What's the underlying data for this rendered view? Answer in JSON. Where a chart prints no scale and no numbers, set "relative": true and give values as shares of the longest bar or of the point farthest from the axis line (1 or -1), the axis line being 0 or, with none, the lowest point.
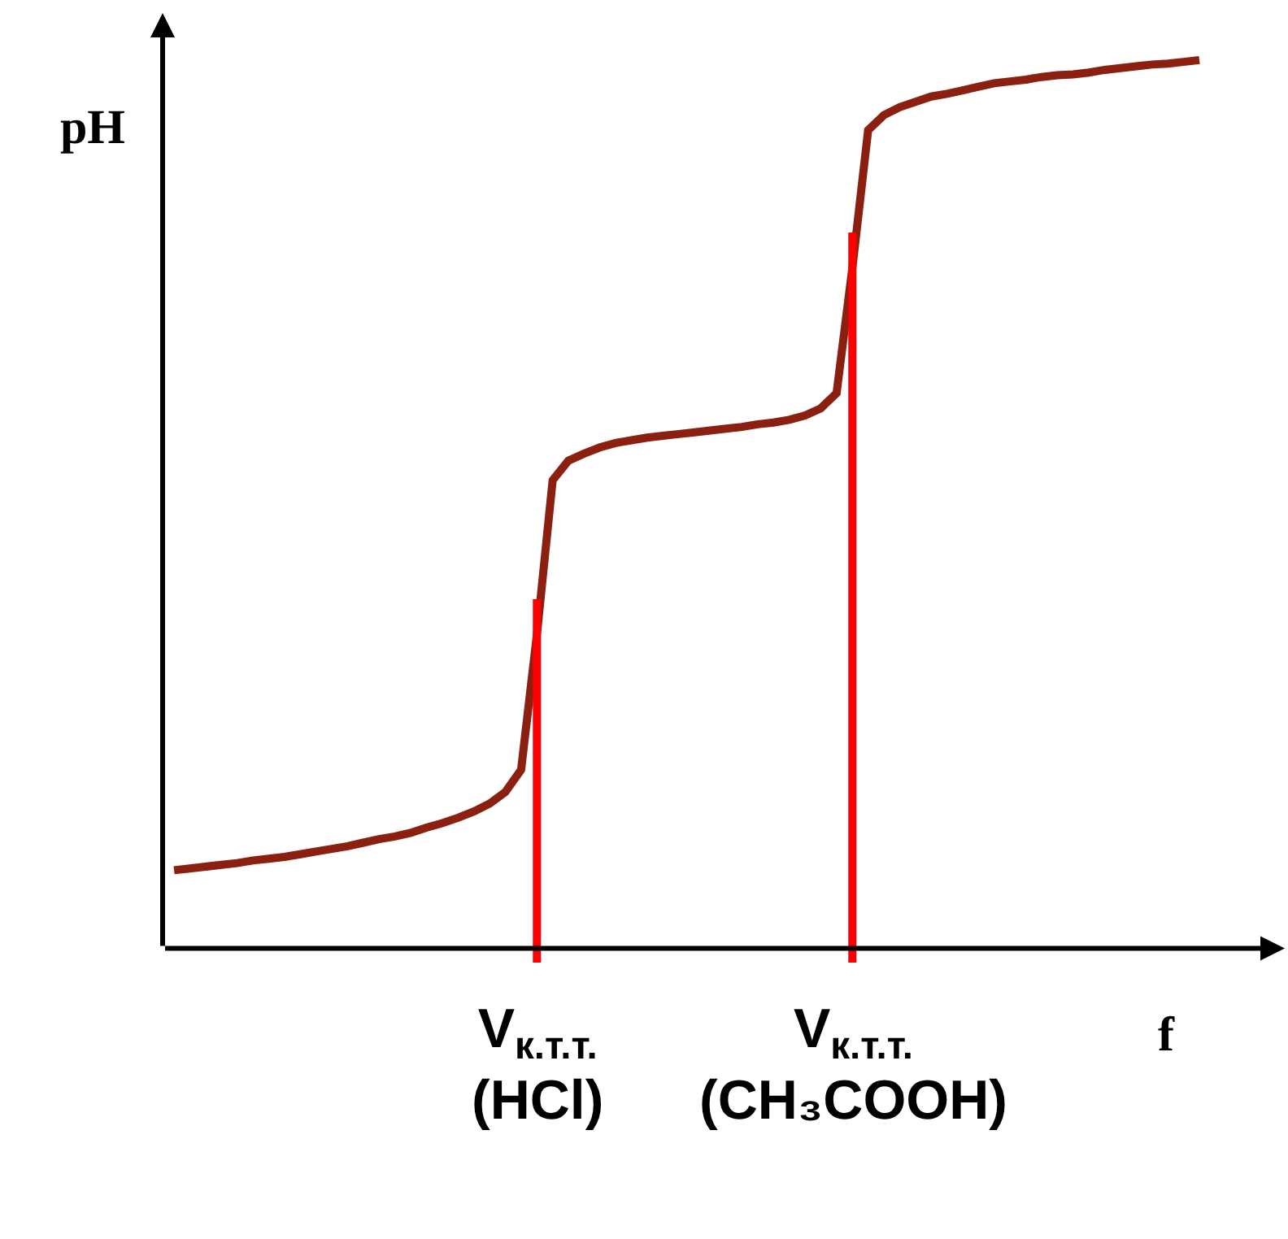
{
  "chart_data": {
    "type": "line",
    "relative": true,
    "xlabel": "f",
    "ylabel": "pH",
    "marker": "none",
    "line_style": "solid",
    "categories": [
      null,
      null,
      null,
      null,
      null,
      null,
      null,
      null,
      null,
      null,
      null,
      null,
      null,
      null,
      null,
      null,
      null,
      null,
      null,
      null,
      null,
      null,
      null,
      null,
      null,
      null,
      null,
      null,
      null,
      null,
      null,
      null,
      null,
      null,
      null,
      null,
      null,
      null,
      null,
      null,
      null,
      null,
      null,
      null,
      null,
      null,
      null,
      null,
      null,
      null,
      null,
      null,
      null,
      null,
      null,
      null,
      null,
      null,
      null,
      null,
      null,
      null,
      null,
      null,
      null,
      null
    ],
    "series": [
      {
        "color": "#8b2010",
        "values": [
          0.088,
          0.09,
          0.092,
          0.094,
          0.096,
          0.099,
          0.101,
          0.103,
          0.106,
          0.109,
          0.112,
          0.115,
          0.119,
          0.123,
          0.126,
          0.13,
          0.136,
          0.141,
          0.147,
          0.154,
          0.163,
          0.176,
          0.201,
          0.353,
          0.527,
          0.549,
          0.557,
          0.564,
          0.569,
          0.572,
          0.575,
          0.577,
          0.579,
          0.581,
          0.583,
          0.585,
          0.587,
          0.59,
          0.592,
          0.595,
          0.6,
          0.608,
          0.625,
          0.766,
          0.921,
          0.938,
          0.947,
          0.953,
          0.959,
          0.962,
          0.966,
          0.97,
          0.974,
          0.976,
          0.978,
          0.981,
          0.983,
          0.984,
          0.986,
          0.989,
          0.991,
          0.993,
          0.995,
          0.996,
          0.998,
          1.0
        ]
      }
    ],
    "annotations": [
      "V$_{к.т.т.}$\n(HCl)",
      "V$_{к.т.т.}$\n(CH₃COOH)"
    ]
  }
}
